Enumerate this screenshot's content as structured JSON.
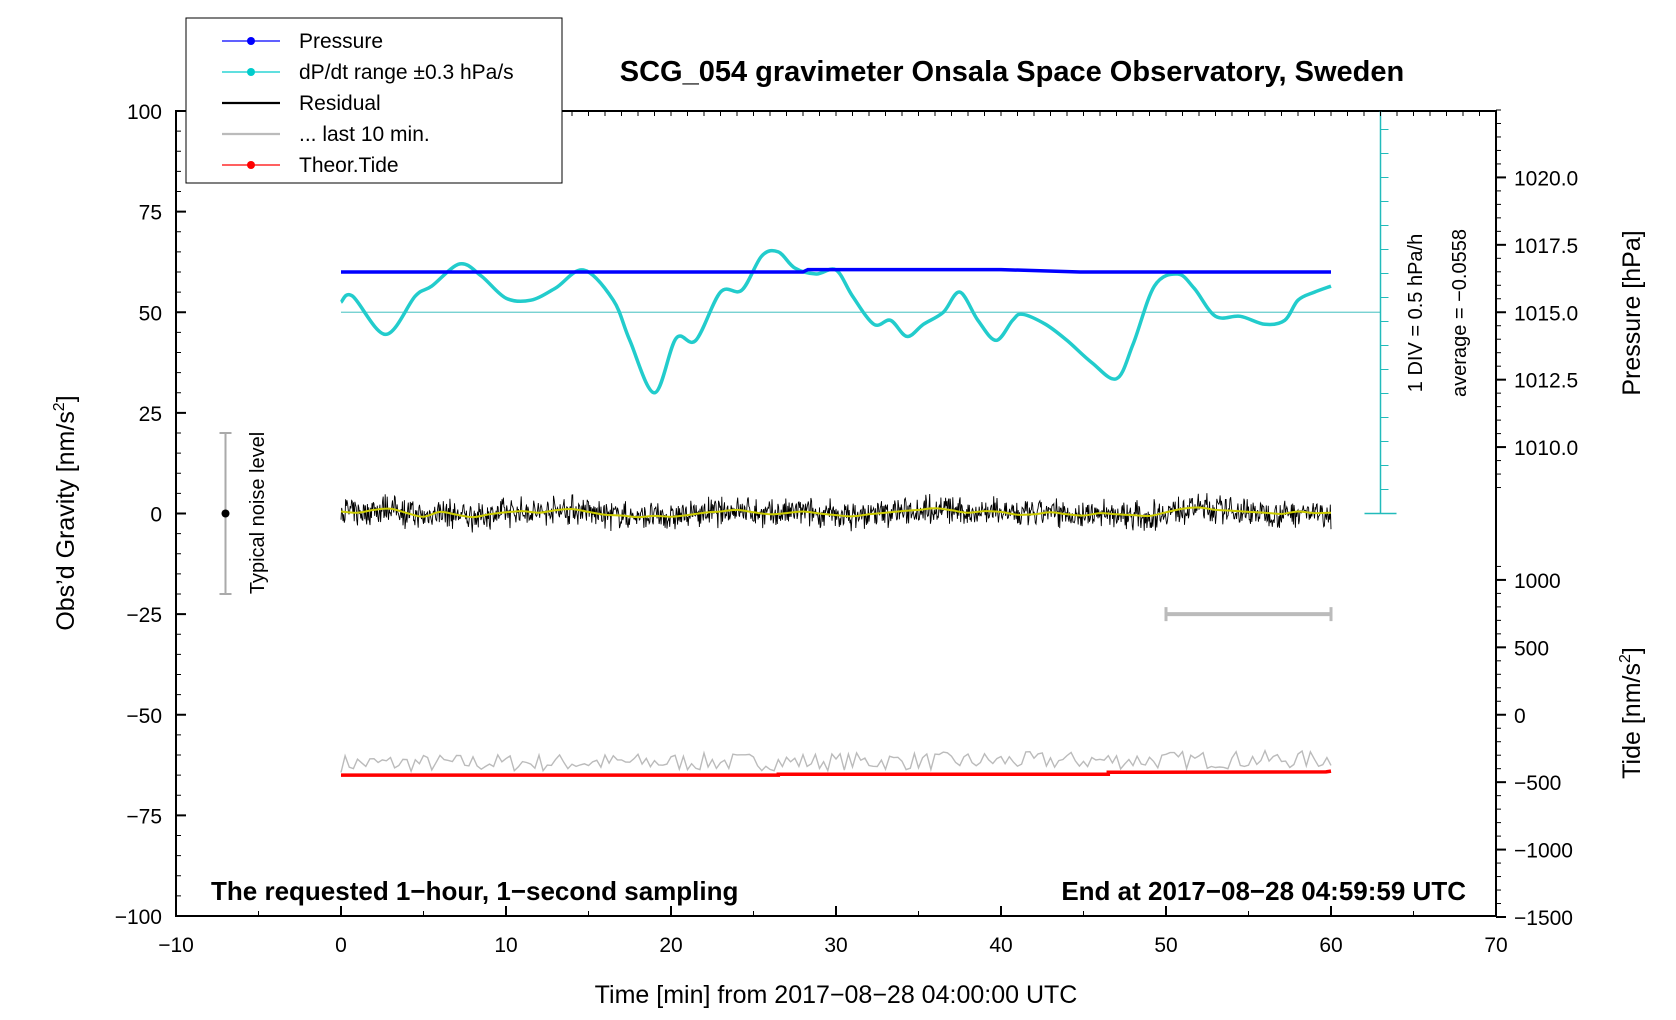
{
  "chart_data": {
    "type": "line",
    "title": "SCG_054 gravimeter Onsala Space Observatory, Sweden",
    "xlabel": "Time [min] from 2017−08−28 04:00:00 UTC",
    "ylabel": "Obs’d Gravity [nm/s",
    "ylabel_sup": "2",
    "ylabel_end": "]",
    "xlim": [
      -10,
      70
    ],
    "ylim": [
      -100,
      100
    ],
    "x_ticks": [
      "−10",
      "0",
      "10",
      "20",
      "30",
      "40",
      "50",
      "60",
      "70"
    ],
    "x_tick_values": [
      -10,
      0,
      10,
      20,
      30,
      40,
      50,
      60,
      70
    ],
    "y_ticks": [
      "100",
      "75",
      "50",
      "25",
      "0",
      "−25",
      "−50",
      "−75",
      "−100"
    ],
    "y_tick_values": [
      100,
      75,
      50,
      25,
      0,
      -25,
      -50,
      -75,
      -100
    ],
    "pressure_axis": {
      "label": "Pressure [hPa]",
      "ticks": [
        "1020.0",
        "1017.5",
        "1015.0",
        "1012.5",
        "1010.0"
      ],
      "values": [
        1020.0,
        1017.5,
        1015.0,
        1012.5,
        1010.0
      ]
    },
    "tide_axis": {
      "label": "Tide [nm/s",
      "label_sup": "2",
      "label_end": "]",
      "ticks": [
        "1000",
        "500",
        "0",
        "−500",
        "−1000",
        "−1500"
      ],
      "values": [
        1000,
        500,
        0,
        -500,
        -1000,
        -1500
      ]
    },
    "legend": {
      "position": "top-left",
      "items": [
        {
          "label": "Pressure",
          "color": "#0000ff",
          "marker": true
        },
        {
          "label": "dP/dt range ±0.3 hPa/s",
          "color": "#00cccc",
          "marker": true
        },
        {
          "label": "Residual",
          "color": "#000000",
          "marker": false
        },
        {
          "label": "... last 10 min.",
          "color": "#bbbbbb",
          "marker": false
        },
        {
          "label": "Theor.Tide",
          "color": "#ff0000",
          "marker": true
        }
      ]
    },
    "dpdt_scale": {
      "line1": "1 DIV = 0.5 hPa/h",
      "line2": "average = −0.0558"
    },
    "noise_label": "Typical noise level",
    "noise_range": [
      -20,
      20
    ],
    "last10_range": [
      50,
      60
    ],
    "note_left": "The requested 1−hour, 1−second sampling",
    "note_right": "End at 2017−08−28 04:59:59 UTC",
    "series": [
      {
        "key": "pressure",
        "color": "#0000ff",
        "x": [
          0,
          28,
          28.3,
          40,
          44.8,
          60
        ],
        "y": [
          60,
          60,
          60.6,
          60.6,
          60,
          60
        ]
      },
      {
        "key": "dpdt",
        "color": "#22cccc",
        "baseline": 50,
        "x": [
          0,
          0.7,
          2.7,
          4.5,
          5.5,
          7.2,
          8.5,
          10,
          11.5,
          13,
          14.7,
          16.5,
          17.5,
          19,
          20.3,
          21.5,
          23,
          24.3,
          25.5,
          26.5,
          27.5,
          28.8,
          30,
          31,
          32.3,
          33.3,
          34.3,
          35.3,
          36.5,
          37.5,
          38.6,
          39.7,
          40.7,
          41.3,
          42.7,
          44,
          45.5,
          47,
          48,
          49.3,
          50.7,
          51.7,
          53,
          54.5,
          56,
          57.2,
          58,
          59,
          60
        ],
        "y": [
          52.5,
          54,
          44.5,
          54,
          56.5,
          62,
          59,
          53.5,
          53,
          56,
          60.5,
          53,
          43,
          30,
          43.5,
          43,
          55,
          55.5,
          64,
          65,
          61,
          59.5,
          60.5,
          54,
          47,
          48,
          44,
          47,
          50,
          55,
          48,
          43,
          48,
          49.5,
          47,
          43,
          37.5,
          33.5,
          42,
          56.5,
          59.5,
          56,
          49,
          49,
          47,
          48,
          53,
          55,
          56.5
        ]
      },
      {
        "key": "residual",
        "color": "#000000",
        "smooth_color": "#cccc00",
        "amplitude": 3.5,
        "x": [
          0,
          1,
          2,
          3,
          4,
          5,
          6,
          7,
          8,
          9,
          10,
          11,
          12,
          13,
          14,
          15,
          16,
          17,
          18,
          19,
          20,
          21,
          22,
          23,
          24,
          25,
          26,
          27,
          28,
          29,
          30,
          31,
          32,
          33,
          34,
          35,
          36,
          37,
          38,
          39,
          40,
          41,
          42,
          43,
          44,
          45,
          46,
          47,
          48,
          49,
          50,
          51,
          52,
          53,
          54,
          55,
          56,
          57,
          58,
          59,
          60
        ],
        "y": [
          0.5,
          0.2,
          0.9,
          1.2,
          0.1,
          -0.8,
          0.4,
          -0.3,
          -0.9,
          -0.2,
          0.3,
          0.6,
          0.2,
          0.8,
          1.1,
          0.4,
          -0.3,
          -0.5,
          -0.9,
          -0.6,
          -0.8,
          -0.4,
          0.2,
          0.5,
          0.9,
          0.3,
          -0.2,
          0.1,
          0.5,
          0.0,
          -0.4,
          -0.7,
          -0.2,
          0.2,
          0.6,
          0.9,
          1.3,
          0.8,
          0.2,
          0.6,
          0.4,
          -0.3,
          -0.2,
          0.3,
          -0.2,
          -0.5,
          0.1,
          -0.2,
          -0.4,
          -0.6,
          0.3,
          1.2,
          1.5,
          0.9,
          0.7,
          0.4,
          0.2,
          -0.1,
          0.5,
          0.1,
          0.2
        ]
      },
      {
        "key": "last10",
        "color": "#bbbbbb",
        "x": [
          0,
          60
        ],
        "y": [
          -63,
          -62
        ]
      },
      {
        "key": "tide",
        "color": "#ff0000",
        "x": [
          0,
          26.5,
          26.5,
          46.5,
          46.5,
          59.7,
          60
        ],
        "y": [
          -65,
          -65,
          -64.8,
          -64.8,
          -64.3,
          -64.2,
          -64
        ]
      }
    ]
  }
}
